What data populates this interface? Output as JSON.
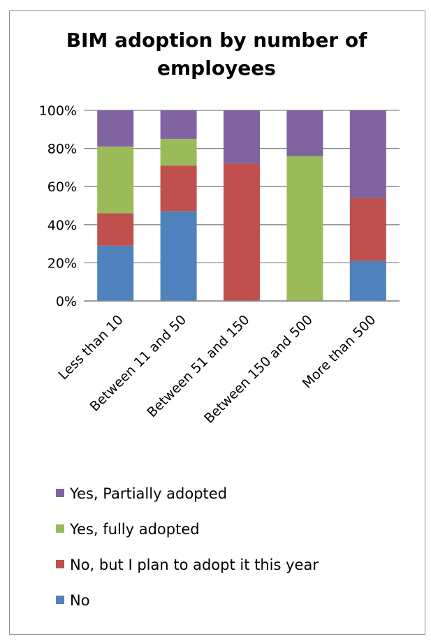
{
  "chart_data": {
    "type": "bar",
    "stacked": true,
    "title": "BIM adoption by number of employees",
    "categories": [
      "Less than 10",
      "Between 11 and 50",
      "Between 51 and 150",
      "Between 150 and 500",
      "More than 500"
    ],
    "series": [
      {
        "name": "No",
        "color": "#4f81bd",
        "values": [
          29,
          47,
          0,
          0,
          21
        ]
      },
      {
        "name": "No, but I plan to adopt it this year",
        "color": "#c0504d",
        "values": [
          17,
          24,
          72,
          0,
          33
        ]
      },
      {
        "name": "Yes, fully adopted",
        "color": "#9bbb59",
        "values": [
          35,
          14,
          0,
          76,
          0
        ]
      },
      {
        "name": "Yes, Partially adopted",
        "color": "#8064a2",
        "values": [
          19,
          15,
          28,
          24,
          46
        ]
      }
    ],
    "ylim": [
      0,
      100
    ],
    "yticks": [
      "0%",
      "20%",
      "40%",
      "60%",
      "80%",
      "100%"
    ],
    "grid": true,
    "legend_position": "bottom"
  }
}
